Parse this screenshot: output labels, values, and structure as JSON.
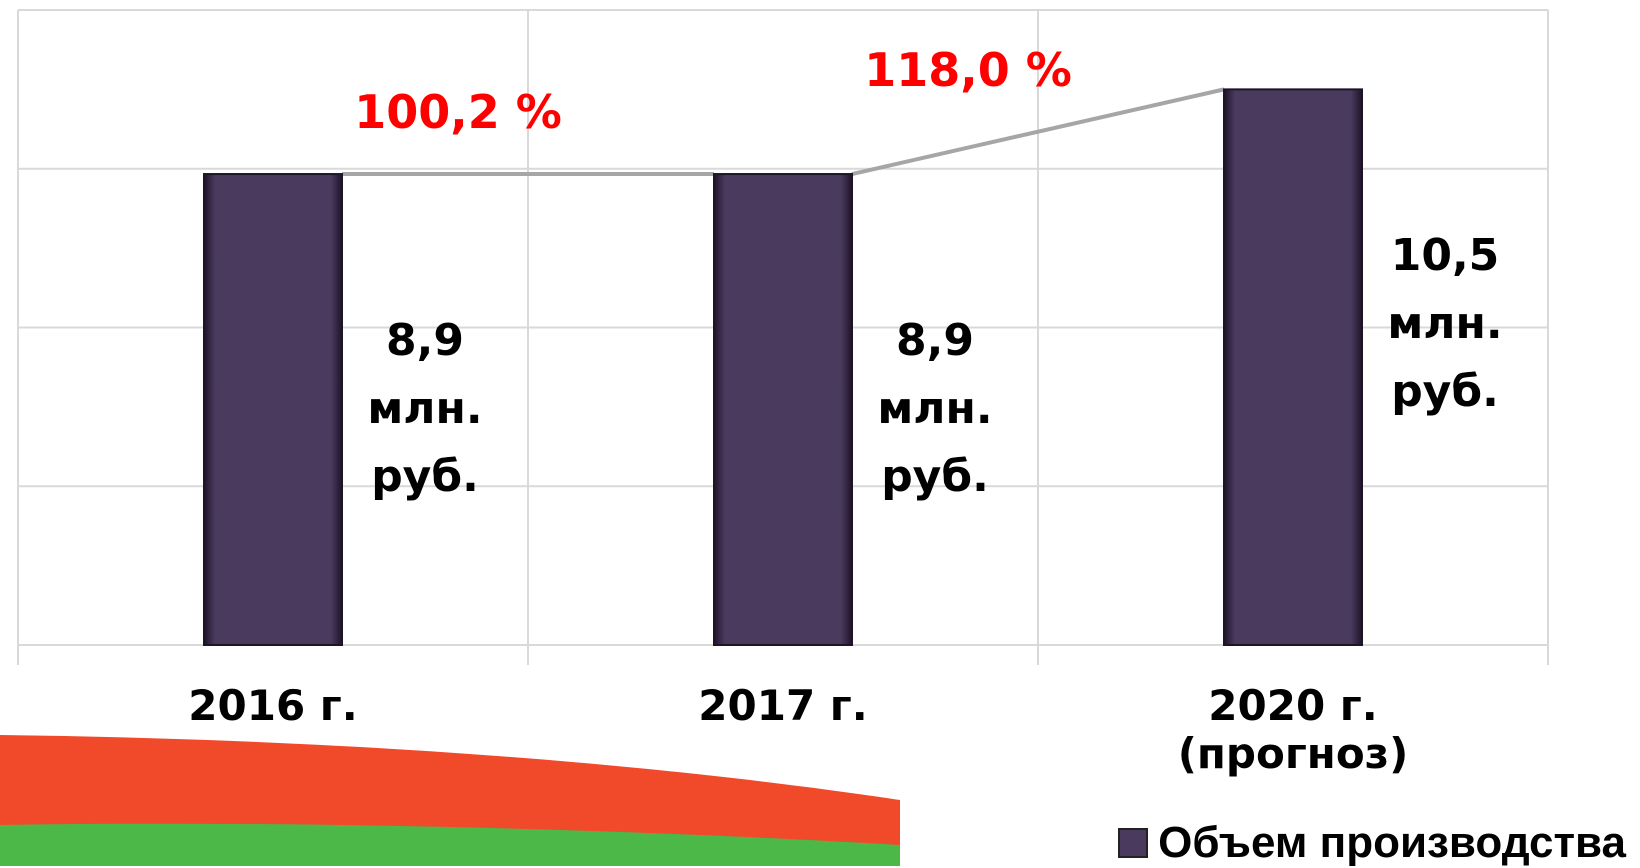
{
  "chart_data": {
    "type": "bar",
    "categories": [
      "2016 г.",
      "2017 г.",
      "2020  г. (прогноз)"
    ],
    "series": [
      {
        "name": "Объем производства",
        "color": "#4a3a5e",
        "values": [
          8.9,
          8.9,
          10.5
        ],
        "value_labels": [
          "8,9 млн. руб.",
          "8,9 млн. руб.",
          "10,5 млн. руб."
        ]
      }
    ],
    "annotations": [
      "100,2 %",
      "118,0 %"
    ],
    "ylim": [
      0,
      12
    ],
    "yticks": [
      0,
      3,
      6,
      9,
      12
    ],
    "grid": true,
    "legend": "bottom-right"
  }
}
